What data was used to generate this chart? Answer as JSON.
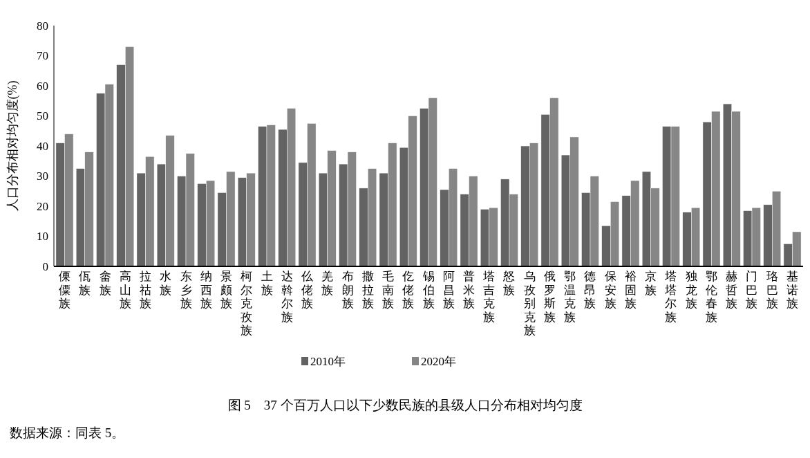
{
  "chart_data": {
    "type": "bar",
    "title": "图 5　37 个百万人口以下少数民族的县级人口分布相对均匀度",
    "ylabel": "人口分布相对均匀度(%)",
    "categories": [
      "傈僳族",
      "佤族",
      "畲族",
      "高山族",
      "拉祜族",
      "水族",
      "东乡族",
      "纳西族",
      "景颇族",
      "柯尔克孜族",
      "土族",
      "达斡尔族",
      "仫佬族",
      "羌族",
      "布朗族",
      "撒拉族",
      "毛南族",
      "仡佬族",
      "锡伯族",
      "阿昌族",
      "普米族",
      "塔吉克族",
      "怒族",
      "乌孜别克族",
      "俄罗斯族",
      "鄂温克族",
      "德昂族",
      "保安族",
      "裕固族",
      "京族",
      "塔塔尔族",
      "独龙族",
      "鄂伦春族",
      "赫哲族",
      "门巴族",
      "珞巴族",
      "基诺族"
    ],
    "series": [
      {
        "name": "2010年",
        "color": "#636363",
        "values": [
          41,
          32.5,
          57.5,
          67,
          31,
          34,
          30,
          27.5,
          24.5,
          29.5,
          46.5,
          45.5,
          34.5,
          31,
          34,
          26,
          31,
          39.5,
          52.5,
          25.5,
          24,
          19,
          29,
          40,
          50.5,
          37,
          24.5,
          13.5,
          23.5,
          31.5,
          46.5,
          18,
          48,
          54,
          18.5,
          20.5,
          7.5
        ]
      },
      {
        "name": "2020年",
        "color": "#868686",
        "values": [
          44,
          38,
          60.5,
          73,
          36.5,
          43.5,
          37.5,
          28.5,
          31.5,
          31,
          47,
          52.5,
          47.5,
          38.5,
          38,
          32.5,
          41,
          50,
          56,
          32.5,
          30,
          19.5,
          24,
          41,
          56,
          43,
          30,
          21.5,
          28.5,
          26,
          46.5,
          19.5,
          51.5,
          51.5,
          19.5,
          25,
          11.5
        ]
      }
    ],
    "ylim": [
      0,
      80
    ],
    "yticks": [
      0,
      10,
      20,
      30,
      40,
      50,
      60,
      70,
      80
    ],
    "grid": false,
    "legend": "bottom",
    "annotations": [
      "数据来源：同表 5。"
    ]
  }
}
